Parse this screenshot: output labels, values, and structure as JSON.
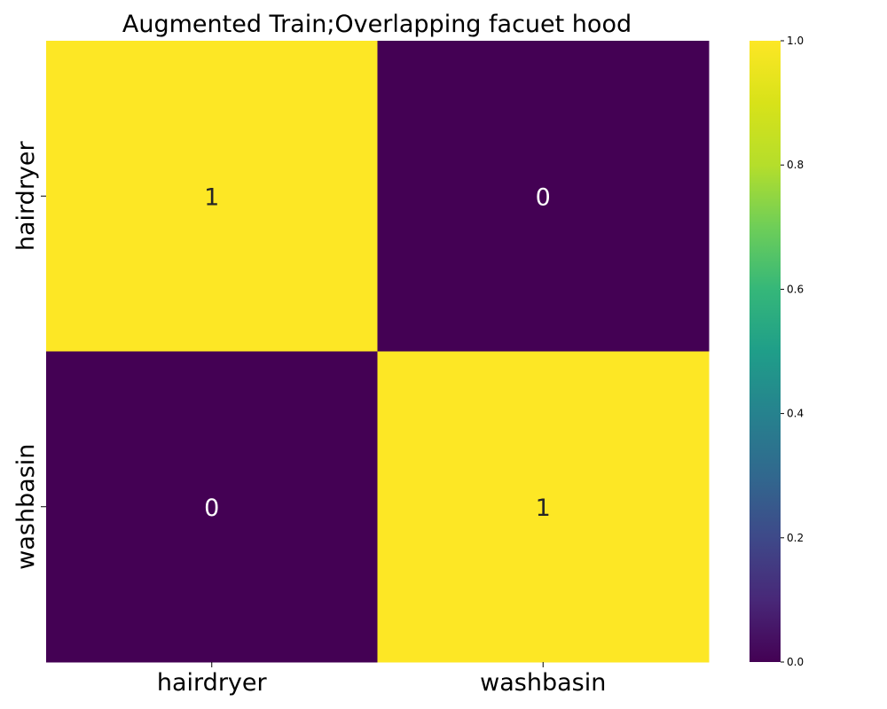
{
  "chart_data": {
    "type": "heatmap",
    "title": "Augmented Train;Overlapping facuet hood",
    "x_categories": [
      "hairdryer",
      "washbasin"
    ],
    "y_categories": [
      "hairdryer",
      "washbasin"
    ],
    "values": [
      [
        1,
        0
      ],
      [
        0,
        1
      ]
    ],
    "annotations": [
      [
        "1",
        "0"
      ],
      [
        "0",
        "1"
      ]
    ],
    "colormap": "viridis",
    "colors": {
      "low": "#440154",
      "high": "#fde725",
      "annot_on_high": "#262626",
      "annot_on_low": "#ffffff"
    },
    "colorbar": {
      "range": [
        0.0,
        1.0
      ],
      "ticks": [
        "0.0",
        "0.2",
        "0.4",
        "0.6",
        "0.8",
        "1.0"
      ],
      "placement": "right"
    }
  }
}
